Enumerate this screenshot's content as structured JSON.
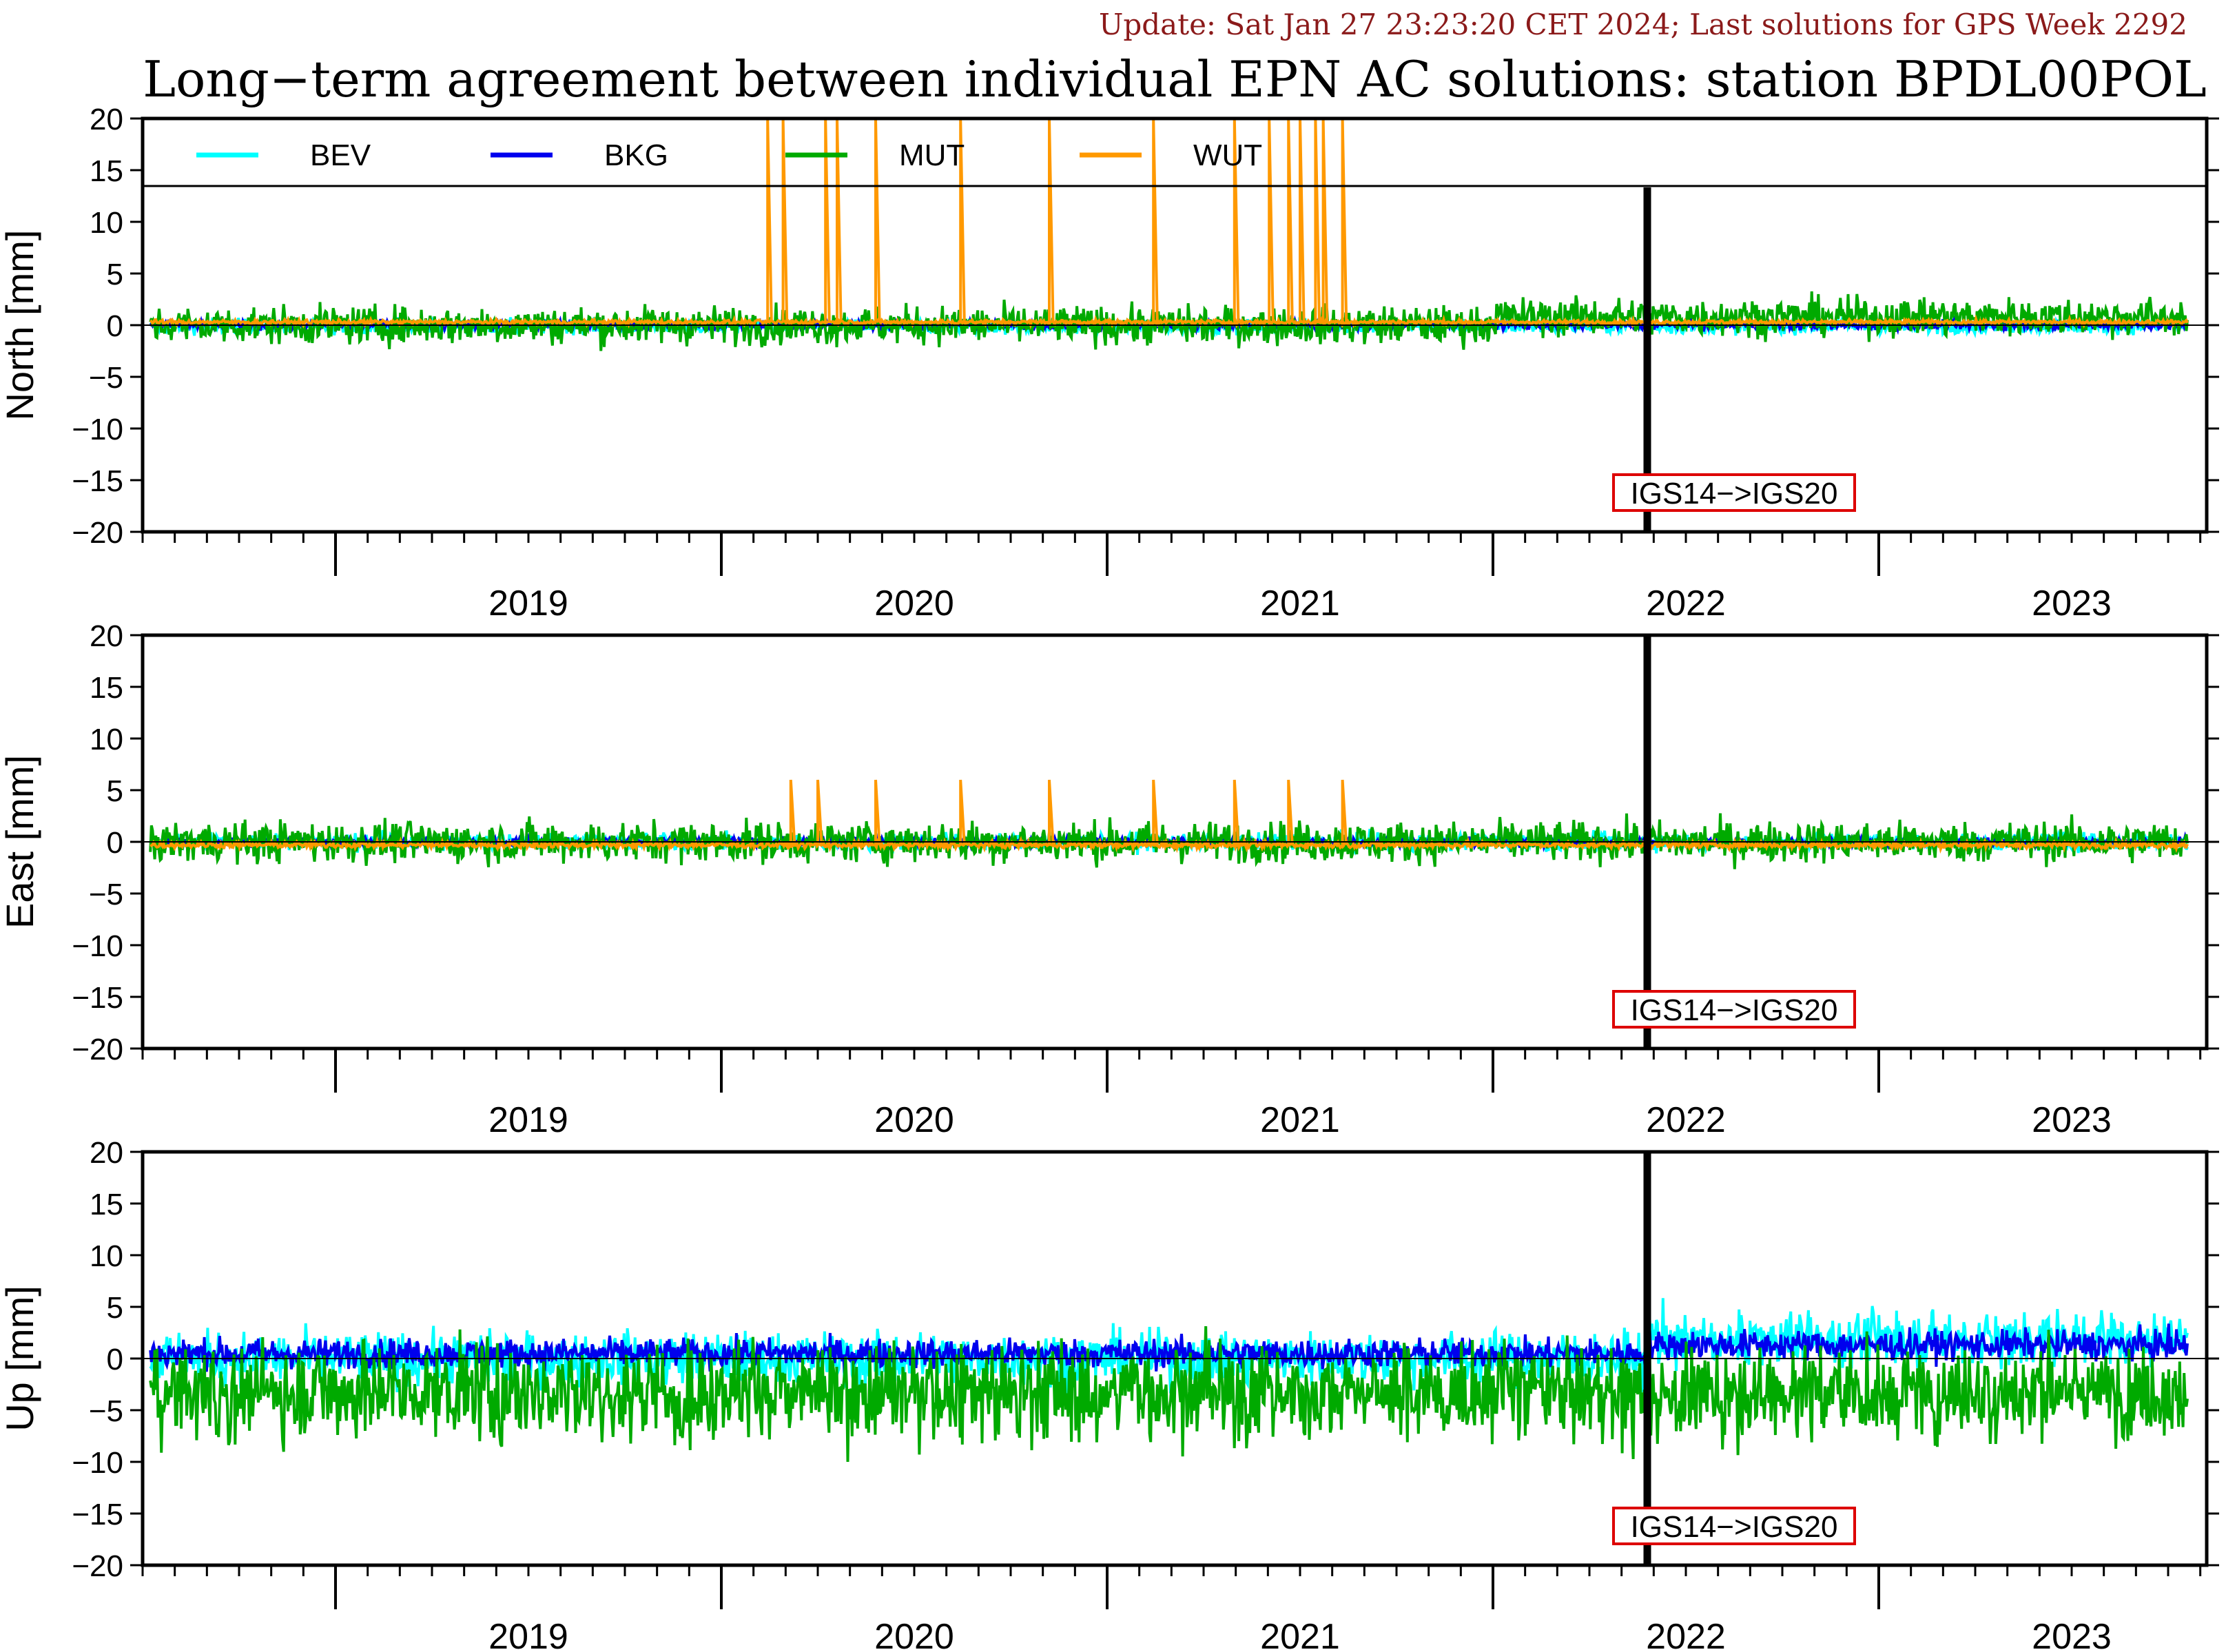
{
  "header": {
    "update": "Update: Sat Jan 27 23:23:20 CET 2024; Last solutions for GPS Week 2292",
    "title": "Long−term agreement between individual EPN AC solutions: station BPDL00POL"
  },
  "colors": {
    "BEV": "#00ffff",
    "BKG": "#0000ee",
    "MUT": "#00aa00",
    "WUT": "#ff9900",
    "annotation_border": "#dd0000",
    "update_text": "#8b1a1a"
  },
  "chart_data": [
    {
      "type": "line",
      "panel": "north",
      "ylabel": "North [mm]",
      "ylim": [
        -20,
        20
      ],
      "yticks": [
        "20",
        "15",
        "10",
        "5",
        "0",
        "−5",
        "−10",
        "−15",
        "−20"
      ],
      "xlim": [
        2018.5,
        2023.85
      ],
      "year_labels": [
        "2019",
        "2020",
        "2021",
        "2022",
        "2023"
      ],
      "legend": [
        "BEV",
        "BKG",
        "MUT",
        "WUT"
      ],
      "legend_placement": "top",
      "annotation": {
        "text": "IGS14−>IGS20",
        "x": 2022.4
      },
      "series": [
        {
          "name": "BEV",
          "amplitude": 0.5,
          "offset": -0.1
        },
        {
          "name": "BKG",
          "amplitude": 0.3,
          "offset": 0.0
        },
        {
          "name": "MUT",
          "amplitude": 1.3,
          "offset": 0.0
        },
        {
          "name": "WUT",
          "amplitude": 0.15,
          "offset": 0.3,
          "spikes_x": [
            2020.12,
            2020.16,
            2020.27,
            2020.3,
            2020.4,
            2020.62,
            2020.85,
            2021.12,
            2021.33,
            2021.42,
            2021.47,
            2021.5,
            2021.54,
            2021.56,
            2021.61
          ],
          "spikes_y": 20
        }
      ]
    },
    {
      "type": "line",
      "panel": "east",
      "ylabel": "East [mm]",
      "ylim": [
        -20,
        20
      ],
      "yticks": [
        "20",
        "15",
        "10",
        "5",
        "0",
        "−5",
        "−10",
        "−15",
        "−20"
      ],
      "xlim": [
        2018.5,
        2023.85
      ],
      "year_labels": [
        "2019",
        "2020",
        "2021",
        "2022",
        "2023"
      ],
      "annotation": {
        "text": "IGS14−>IGS20",
        "x": 2022.4
      },
      "series": [
        {
          "name": "BEV",
          "amplitude": 0.6,
          "offset": 0.0
        },
        {
          "name": "BKG",
          "amplitude": 0.3,
          "offset": 0.0
        },
        {
          "name": "MUT",
          "amplitude": 1.4,
          "offset": 0.0
        },
        {
          "name": "WUT",
          "amplitude": 0.2,
          "offset": -0.3,
          "spikes_x": [
            2020.18,
            2020.25,
            2020.4,
            2020.62,
            2020.85,
            2021.12,
            2021.33,
            2021.47,
            2021.61
          ],
          "spikes_y": 6
        }
      ]
    },
    {
      "type": "line",
      "panel": "up",
      "ylabel": "Up [mm]",
      "ylim": [
        -20,
        20
      ],
      "yticks": [
        "20",
        "15",
        "10",
        "5",
        "0",
        "−5",
        "−10",
        "−15",
        "−20"
      ],
      "xlim": [
        2018.5,
        2023.85
      ],
      "year_labels": [
        "2019",
        "2020",
        "2021",
        "2022",
        "2023"
      ],
      "annotation": {
        "text": "IGS14−>IGS20",
        "x": 2022.4
      },
      "series": [
        {
          "name": "BEV",
          "amplitude": 1.8,
          "offset": 0.0
        },
        {
          "name": "BKG",
          "amplitude": 1.0,
          "offset": 0.5
        },
        {
          "name": "MUT",
          "amplitude": 3.2,
          "offset": -2.5
        },
        {
          "name": "WUT",
          "amplitude": 0.0,
          "offset": 0.0,
          "hidden": true
        }
      ]
    }
  ]
}
